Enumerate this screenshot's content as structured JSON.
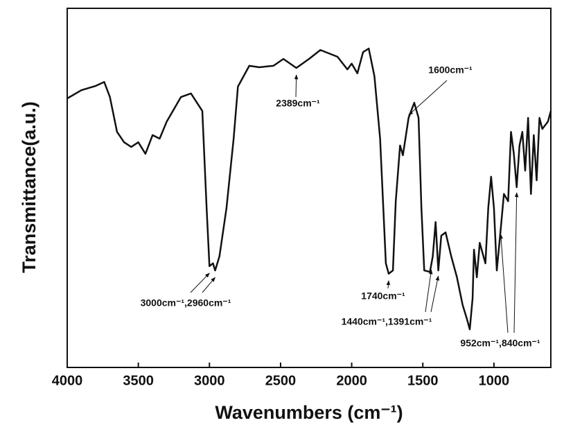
{
  "chart_data": {
    "type": "line",
    "xlabel": "Wavenumbers (cm⁻¹)",
    "ylabel": "Transmittance(a.u.)",
    "xlim": [
      4000,
      600
    ],
    "ylim": [
      0,
      100
    ],
    "xticks": [
      4000,
      3500,
      3000,
      2500,
      2000,
      1500,
      1000
    ],
    "series": [
      {
        "color": "#111111",
        "x": [
          4000,
          3900,
          3800,
          3740,
          3700,
          3650,
          3600,
          3550,
          3500,
          3450,
          3400,
          3350,
          3300,
          3200,
          3130,
          3050,
          3020,
          3000,
          2975,
          2960,
          2930,
          2880,
          2860,
          2830,
          2800,
          2720,
          2650,
          2550,
          2480,
          2389,
          2300,
          2220,
          2100,
          2030,
          2000,
          1960,
          1920,
          1880,
          1840,
          1800,
          1760,
          1740,
          1710,
          1690,
          1660,
          1640,
          1600,
          1560,
          1530,
          1510,
          1490,
          1450,
          1430,
          1410,
          1391,
          1370,
          1340,
          1300,
          1260,
          1220,
          1190,
          1170,
          1150,
          1140,
          1120,
          1100,
          1060,
          1040,
          1020,
          1000,
          980,
          952,
          930,
          900,
          880,
          860,
          840,
          820,
          800,
          780,
          760,
          740,
          720,
          700,
          680,
          660,
          620,
          600
        ],
        "values": [
          74.9,
          77.2,
          78.4,
          79.5,
          75.3,
          65.6,
          62.7,
          61.4,
          62.7,
          59.5,
          64.7,
          63.7,
          68.5,
          75.3,
          76.3,
          71.4,
          44.4,
          28.2,
          29.0,
          27.0,
          30.9,
          44.4,
          52.1,
          63.7,
          78.2,
          84.0,
          83.6,
          84.0,
          85.9,
          83.4,
          85.9,
          88.4,
          86.5,
          83.0,
          84.6,
          81.9,
          87.8,
          88.8,
          81.1,
          63.7,
          29.0,
          26.1,
          27.0,
          46.3,
          61.8,
          59.1,
          69.5,
          73.7,
          69.5,
          44.4,
          27.0,
          26.6,
          30.9,
          40.5,
          27.0,
          36.7,
          37.6,
          30.9,
          25.1,
          17.4,
          13.5,
          10.6,
          19.3,
          32.8,
          25.1,
          34.7,
          29.0,
          44.4,
          53.1,
          44.4,
          27.0,
          38.6,
          48.3,
          46.3,
          65.6,
          59.5,
          50.2,
          61.8,
          65.6,
          54.8,
          69.5,
          48.3,
          64.7,
          52.1,
          69.5,
          66.4,
          68.5,
          71.4
        ]
      }
    ],
    "annotations": [
      {
        "text": "2389cm⁻¹",
        "targets": [
          2389
        ]
      },
      {
        "text": "1600cm⁻¹",
        "targets": [
          1600
        ]
      },
      {
        "text": "3000cm⁻¹,2960cm⁻¹",
        "targets": [
          3000,
          2960
        ]
      },
      {
        "text": "1740cm⁻¹",
        "targets": [
          1740
        ]
      },
      {
        "text": "1440cm⁻¹,1391cm⁻¹",
        "targets": [
          1440,
          1391
        ]
      },
      {
        "text": "952cm⁻¹,840cm⁻¹",
        "targets": [
          952,
          840
        ]
      }
    ]
  }
}
